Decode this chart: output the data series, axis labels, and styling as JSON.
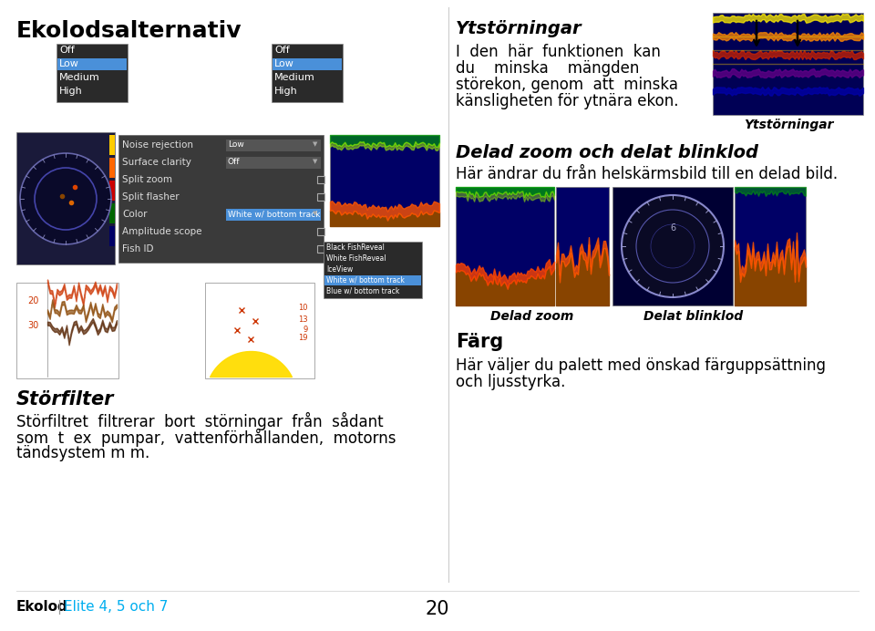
{
  "bg_color": "#ffffff",
  "title": "Ekolodsalternativ",
  "title_fontsize": 18,
  "section1_heading": "Ytstörningar",
  "section1_body_lines": [
    "I  den  här  funktionen  kan",
    "du    minska    mängden",
    "störekon, genom  att  minska",
    "känsligheten för ytnära ekon."
  ],
  "section2_heading": "Delad zoom och delat blinklod",
  "section2_body": "Här ändrar du från helskärmsbild till en delad bild.",
  "section3_heading": "Störfilter",
  "section3_body_line1": "Störfiltret  filtrerar  bort  störningar  från  sådant",
  "section3_body_line2": "som  t  ex  pumpar,  vattenförhållanden,  motorns",
  "section3_body_line3": "tändsystem m m.",
  "section4_heading": "Färg",
  "section4_body_lines": [
    "Här väljer du palett med önskad färguppsättning",
    "och ljusstyrka."
  ],
  "caption_delad_zoom": "Delad zoom",
  "caption_delat_blinklod": "Delat blinklod",
  "caption_ystor": "Ytstörningar",
  "footer_left1": "Ekolod",
  "footer_left3": "Elite 4, 5 och 7",
  "footer_center": "20",
  "footer_color_normal": "#000000",
  "footer_color_highlight": "#00aeef",
  "footer_fontsize": 11,
  "divider_color": "#cccccc",
  "text_color": "#000000",
  "body_fontsize": 12,
  "heading_fontsize": 14,
  "menu_items": [
    [
      "Noise rejection",
      "Low",
      true
    ],
    [
      "Surface clarity",
      "Off",
      true
    ],
    [
      "Split zoom",
      "",
      false
    ],
    [
      "Split flasher",
      "",
      false
    ],
    [
      "Color",
      "White w/ bottom track",
      true
    ],
    [
      "Amplitude scope",
      "",
      false
    ],
    [
      "Fish ID",
      "",
      false
    ]
  ],
  "dropdown_items": [
    "Black FishReveal",
    "White FishReveal",
    "IceView",
    "White w/ bottom track",
    "Blue w/ bottom track"
  ],
  "dropdown_highlight_idx": 3,
  "offlowhigh_items": [
    "Off",
    "Low",
    "Medium",
    "High"
  ],
  "offlowhigh_highlight_idx": 1
}
